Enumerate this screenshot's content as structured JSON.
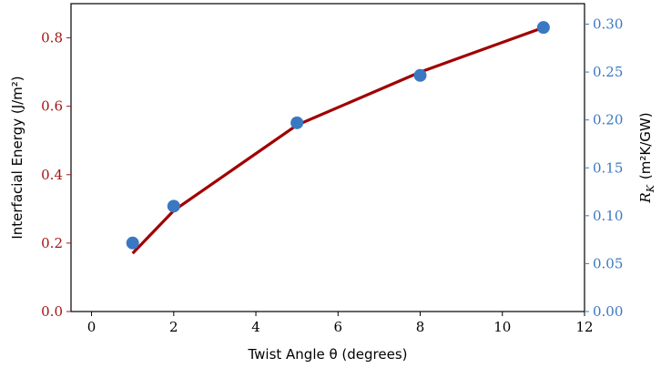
{
  "chart_data": {
    "type": "line",
    "xlabel": "Twist Angle θ (degrees)",
    "ylabel_left": "Interfacial Energy (J/m²)",
    "ylabel_right_symbol": "R",
    "ylabel_right_subscript": "K",
    "ylabel_right_units": "(m²K/GW)",
    "xlim": [
      -0.5,
      12
    ],
    "ylim_left": [
      0.0,
      0.9
    ],
    "ylim_right": [
      0.0,
      0.3214
    ],
    "x_ticks": [
      0,
      2,
      4,
      6,
      8,
      10,
      12
    ],
    "x_tick_labels": [
      "0",
      "2",
      "4",
      "6",
      "8",
      "10",
      "12"
    ],
    "y_left_ticks": [
      0.0,
      0.2,
      0.4,
      0.6,
      0.8
    ],
    "y_left_tick_labels": [
      "0.0",
      "0.2",
      "0.4",
      "0.6",
      "0.8"
    ],
    "y_right_ticks": [
      0.0,
      0.05,
      0.1,
      0.15,
      0.2,
      0.25,
      0.3
    ],
    "y_right_tick_labels": [
      "0.00",
      "0.05",
      "0.10",
      "0.15",
      "0.20",
      "0.25",
      "0.30"
    ],
    "colors": {
      "left": "#a31515",
      "right": "#3a78c2",
      "line": "#a00000",
      "marker": "#3a78c2"
    },
    "series": [
      {
        "axis": "left",
        "style": "line",
        "x": [
          1,
          2,
          5,
          8,
          11
        ],
        "y": [
          0.17,
          0.295,
          0.545,
          0.7,
          0.83
        ]
      },
      {
        "axis": "right",
        "style": "scatter",
        "x": [
          1,
          2,
          5,
          8,
          11
        ],
        "y": [
          0.0715,
          0.11,
          0.197,
          0.2465,
          0.2965
        ]
      }
    ]
  }
}
